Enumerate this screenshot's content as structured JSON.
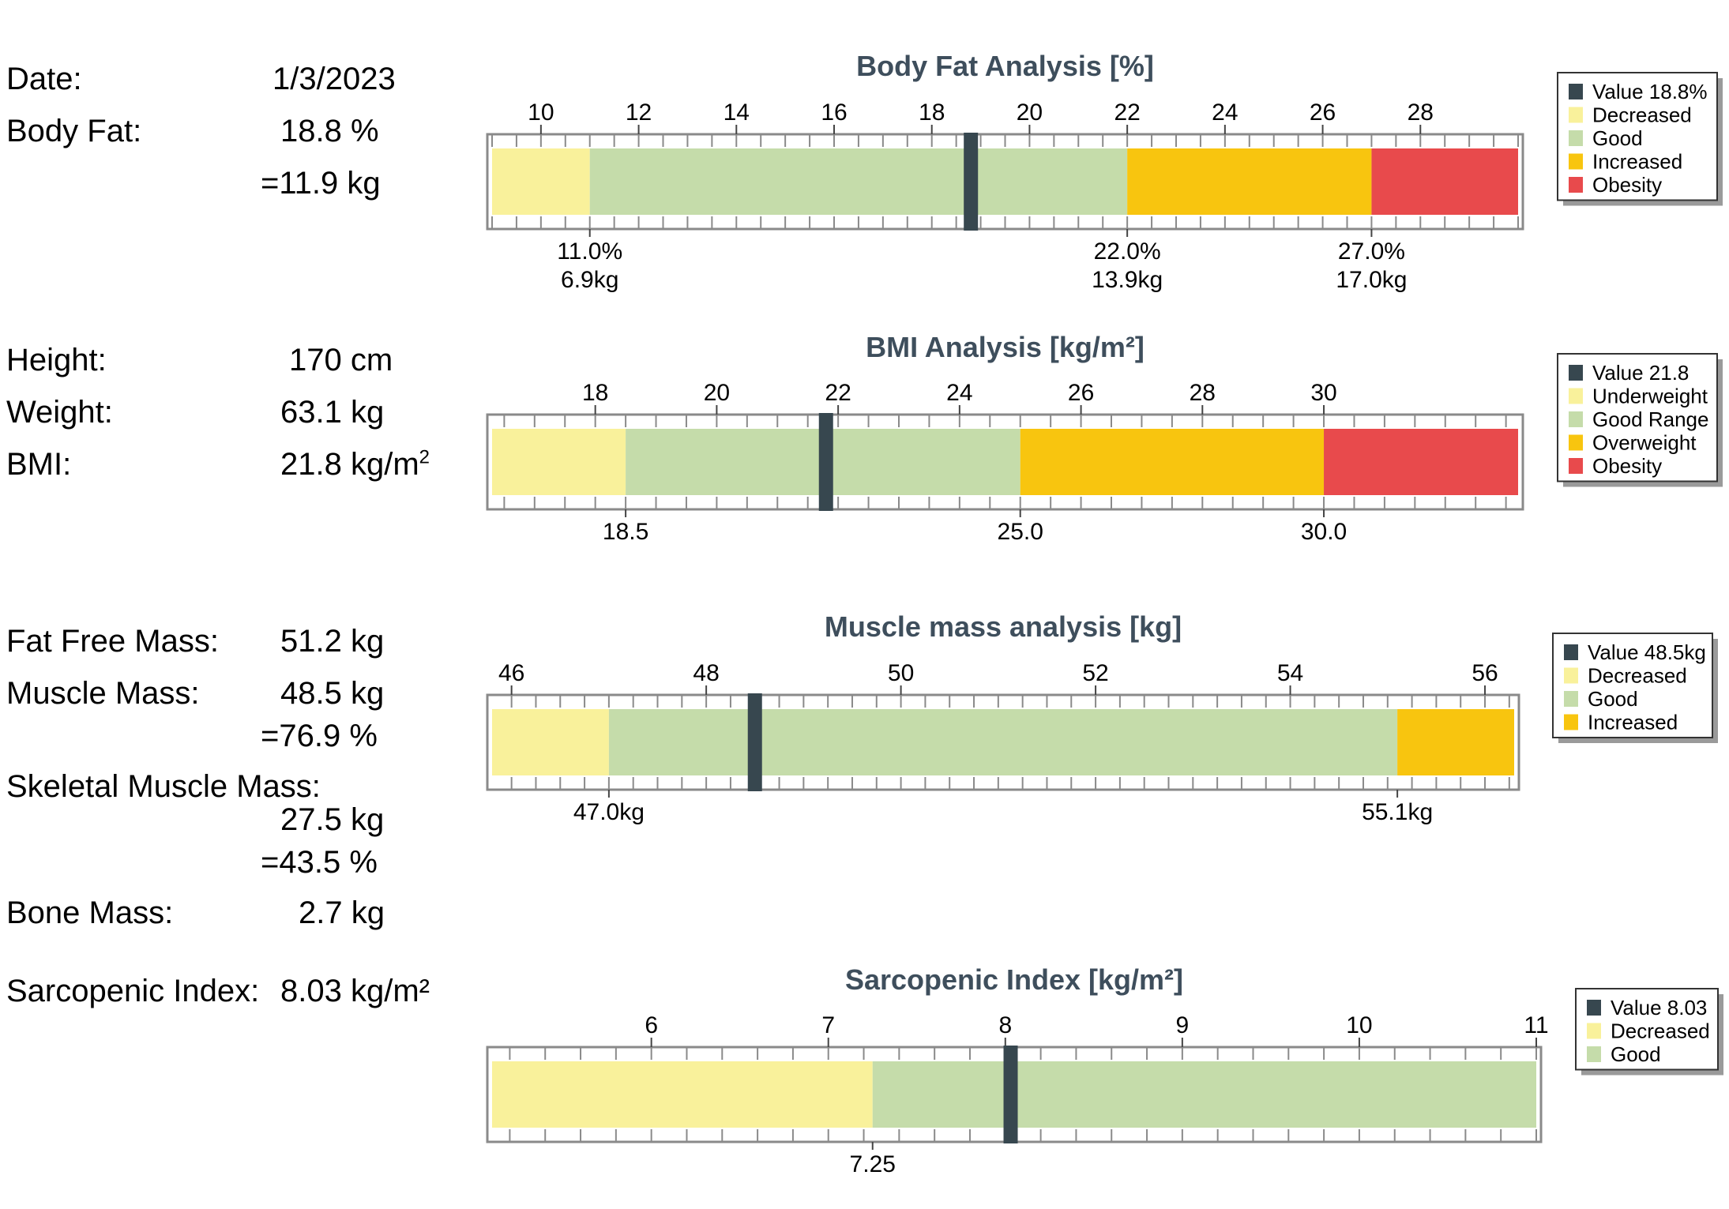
{
  "stats": {
    "date_label": "Date:",
    "date_value": "1/3/2023",
    "body_fat_label": "Body Fat:",
    "body_fat_value": "18.8 %",
    "body_fat_kg": "=11.9 kg",
    "height_label": "Height:",
    "height_value": "170 cm",
    "weight_label": "Weight:",
    "weight_value": "63.1 kg",
    "bmi_label": "BMI:",
    "bmi_value": "21.8 kg/m",
    "bmi_sup": "2",
    "ffm_label": "Fat Free Mass:",
    "ffm_value": "51.2 kg",
    "muscle_label": "Muscle Mass:",
    "muscle_value": "48.5 kg",
    "muscle_pct": "=76.9 %",
    "smm_label": "Skeletal Muscle Mass:",
    "smm_value": "27.5 kg",
    "smm_pct": "=43.5 %",
    "bone_label": "Bone Mass:",
    "bone_value": "2.7 kg",
    "sarco_label": "Sarcopenic Index:",
    "sarco_value": "8.03 kg/m²"
  },
  "colors": {
    "title": "#3e4e5c",
    "marker": "#37474f",
    "yellow": "#f9f19b",
    "green": "#c5dcaa",
    "orange": "#f8c50f",
    "red": "#e84a4c"
  },
  "chart_data": [
    {
      "type": "bar",
      "title": "Body Fat Analysis [%]",
      "xlim": [
        9,
        30
      ],
      "ticks": [
        10,
        12,
        14,
        16,
        18,
        20,
        22,
        24,
        26,
        28
      ],
      "minor_step": 0.5,
      "ranges": [
        {
          "from": 9,
          "to": 11,
          "color": "yellow"
        },
        {
          "from": 11,
          "to": 22,
          "color": "green"
        },
        {
          "from": 22,
          "to": 27,
          "color": "orange"
        },
        {
          "from": 27,
          "to": 30,
          "color": "red"
        }
      ],
      "thresholds": [
        {
          "value": 11,
          "labels": [
            "11.0%",
            "6.9kg"
          ]
        },
        {
          "value": 22,
          "labels": [
            "22.0%",
            "13.9kg"
          ]
        },
        {
          "value": 27,
          "labels": [
            "27.0%",
            "17.0kg"
          ]
        }
      ],
      "value": 18.8,
      "legend": [
        {
          "label": "Value 18.8%",
          "color": "marker"
        },
        {
          "label": "Decreased",
          "color": "yellow"
        },
        {
          "label": "Good",
          "color": "green"
        },
        {
          "label": "Increased",
          "color": "orange"
        },
        {
          "label": "Obesity",
          "color": "red"
        }
      ],
      "legend_placement": "right"
    },
    {
      "type": "bar",
      "title": "BMI Analysis [kg/m²]",
      "xlim": [
        16.3,
        33.2
      ],
      "ticks": [
        18,
        20,
        22,
        24,
        26,
        28,
        30
      ],
      "minor_step": 0.5,
      "ranges": [
        {
          "from": 16.3,
          "to": 18.5,
          "color": "yellow"
        },
        {
          "from": 18.5,
          "to": 25,
          "color": "green"
        },
        {
          "from": 25,
          "to": 30,
          "color": "orange"
        },
        {
          "from": 30,
          "to": 33.2,
          "color": "red"
        }
      ],
      "thresholds": [
        {
          "value": 18.5,
          "labels": [
            "18.5"
          ]
        },
        {
          "value": 25,
          "labels": [
            "25.0"
          ]
        },
        {
          "value": 30,
          "labels": [
            "30.0"
          ]
        }
      ],
      "value": 21.8,
      "legend": [
        {
          "label": "Value 21.8",
          "color": "marker"
        },
        {
          "label": "Underweight",
          "color": "yellow"
        },
        {
          "label": "Good Range",
          "color": "green"
        },
        {
          "label": "Overweight",
          "color": "orange"
        },
        {
          "label": "Obesity",
          "color": "red"
        }
      ],
      "legend_placement": "right"
    },
    {
      "type": "bar",
      "title": "Muscle mass analysis [kg]",
      "xlim": [
        45.8,
        56.3
      ],
      "ticks": [
        46,
        48,
        50,
        52,
        54,
        56
      ],
      "minor_step": 0.25,
      "ranges": [
        {
          "from": 45.8,
          "to": 47,
          "color": "yellow"
        },
        {
          "from": 47,
          "to": 55.1,
          "color": "green"
        },
        {
          "from": 55.1,
          "to": 56.3,
          "color": "orange"
        }
      ],
      "thresholds": [
        {
          "value": 47,
          "labels": [
            "47.0kg"
          ]
        },
        {
          "value": 55.1,
          "labels": [
            "55.1kg"
          ]
        }
      ],
      "value": 48.5,
      "legend": [
        {
          "label": "Value 48.5kg",
          "color": "marker"
        },
        {
          "label": "Decreased",
          "color": "yellow"
        },
        {
          "label": "Good",
          "color": "green"
        },
        {
          "label": "Increased",
          "color": "orange"
        }
      ],
      "legend_placement": "right"
    },
    {
      "type": "bar",
      "title": "Sarcopenic Index [kg/m²]",
      "xlim": [
        5.1,
        11.0
      ],
      "ticks": [
        6,
        7,
        8,
        9,
        10,
        11
      ],
      "minor_step": 0.2,
      "ranges": [
        {
          "from": 5.1,
          "to": 7.25,
          "color": "yellow"
        },
        {
          "from": 7.25,
          "to": 11.0,
          "color": "green"
        }
      ],
      "thresholds": [
        {
          "value": 7.25,
          "labels": [
            "7.25"
          ]
        }
      ],
      "value": 8.03,
      "legend": [
        {
          "label": "Value 8.03",
          "color": "marker"
        },
        {
          "label": "Decreased",
          "color": "yellow"
        },
        {
          "label": "Good",
          "color": "green"
        }
      ],
      "legend_placement": "right"
    }
  ]
}
